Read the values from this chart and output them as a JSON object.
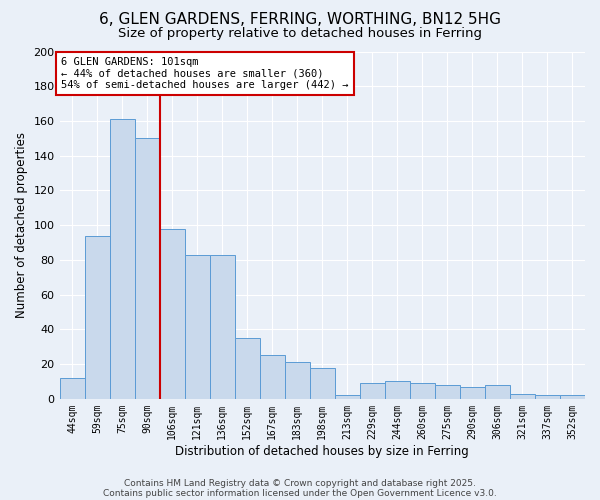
{
  "title_line1": "6, GLEN GARDENS, FERRING, WORTHING, BN12 5HG",
  "title_line2": "Size of property relative to detached houses in Ferring",
  "xlabel": "Distribution of detached houses by size in Ferring",
  "ylabel": "Number of detached properties",
  "categories": [
    "44sqm",
    "59sqm",
    "75sqm",
    "90sqm",
    "106sqm",
    "121sqm",
    "136sqm",
    "152sqm",
    "167sqm",
    "183sqm",
    "198sqm",
    "213sqm",
    "229sqm",
    "244sqm",
    "260sqm",
    "275sqm",
    "290sqm",
    "306sqm",
    "321sqm",
    "337sqm",
    "352sqm"
  ],
  "values": [
    12,
    94,
    161,
    150,
    98,
    83,
    83,
    35,
    25,
    21,
    18,
    2,
    9,
    10,
    9,
    8,
    7,
    8,
    3,
    2,
    2
  ],
  "bar_color": "#c9d9ec",
  "bar_edge_color": "#5b9bd5",
  "vline_x_index": 3.5,
  "vline_color": "#cc0000",
  "annotation_line1": "6 GLEN GARDENS: 101sqm",
  "annotation_line2": "← 44% of detached houses are smaller (360)",
  "annotation_line3": "54% of semi-detached houses are larger (442) →",
  "annotation_box_color": "#cc0000",
  "annotation_fontsize": 7.5,
  "ylim": [
    0,
    200
  ],
  "yticks": [
    0,
    20,
    40,
    60,
    80,
    100,
    120,
    140,
    160,
    180,
    200
  ],
  "background_color": "#eaf0f8",
  "grid_color": "#ffffff",
  "footer_line1": "Contains HM Land Registry data © Crown copyright and database right 2025.",
  "footer_line2": "Contains public sector information licensed under the Open Government Licence v3.0.",
  "title_fontsize": 11,
  "subtitle_fontsize": 9.5,
  "fig_bg_color": "#eaf0f8"
}
